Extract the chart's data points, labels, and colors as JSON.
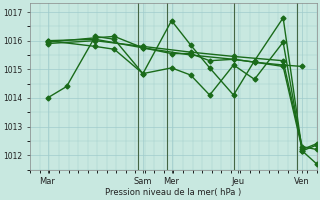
{
  "background_color": "#c8e8e0",
  "grid_color": "#a0cccc",
  "line_color": "#1a6b1a",
  "xlabel": "Pression niveau de la mer( hPa )",
  "ylim": [
    1011.5,
    1017.3
  ],
  "yticks": [
    1012,
    1013,
    1014,
    1015,
    1016,
    1017
  ],
  "xlim": [
    0,
    300
  ],
  "x_day_labels": [
    "Mar",
    "Sam",
    "Mer",
    "Jeu",
    "Ven"
  ],
  "x_day_positions": [
    18,
    118,
    148,
    218,
    285
  ],
  "vline_positions": [
    113,
    143,
    213,
    280
  ],
  "series": [
    {
      "x": [
        18,
        38,
        68,
        88,
        118,
        148,
        168,
        188,
        213,
        235,
        265,
        285,
        300
      ],
      "y": [
        1014.0,
        1014.4,
        1016.15,
        1016.05,
        1014.85,
        1016.7,
        1015.85,
        1015.05,
        1014.1,
        1015.3,
        1016.8,
        1012.15,
        1011.7
      ],
      "marker": "D",
      "markersize": 2.5,
      "linewidth": 1.0
    },
    {
      "x": [
        18,
        68,
        88,
        118,
        148,
        168,
        188,
        213,
        235,
        265,
        285,
        300
      ],
      "y": [
        1015.95,
        1016.1,
        1016.15,
        1015.75,
        1015.55,
        1015.55,
        1015.3,
        1015.35,
        1015.25,
        1015.1,
        1012.2,
        1012.4
      ],
      "marker": "D",
      "markersize": 2.5,
      "linewidth": 1.0
    },
    {
      "x": [
        18,
        68,
        118,
        168,
        213,
        265,
        285,
        300
      ],
      "y": [
        1015.9,
        1016.0,
        1015.8,
        1015.6,
        1015.45,
        1015.3,
        1012.3,
        1012.2
      ],
      "marker": "D",
      "markersize": 2.5,
      "linewidth": 1.0
    },
    {
      "x": [
        18,
        68,
        118,
        168,
        213,
        235,
        265,
        285
      ],
      "y": [
        1016.0,
        1016.05,
        1015.75,
        1015.5,
        1015.35,
        1015.25,
        1015.15,
        1015.1
      ],
      "marker": "D",
      "markersize": 2.5,
      "linewidth": 1.0
    },
    {
      "x": [
        18,
        68,
        88,
        118,
        148,
        168,
        188,
        213,
        235,
        265,
        285,
        300
      ],
      "y": [
        1016.0,
        1015.8,
        1015.7,
        1014.85,
        1015.05,
        1014.8,
        1014.1,
        1015.15,
        1014.65,
        1015.95,
        1012.15,
        1012.35
      ],
      "marker": "D",
      "markersize": 2.5,
      "linewidth": 1.0
    }
  ]
}
